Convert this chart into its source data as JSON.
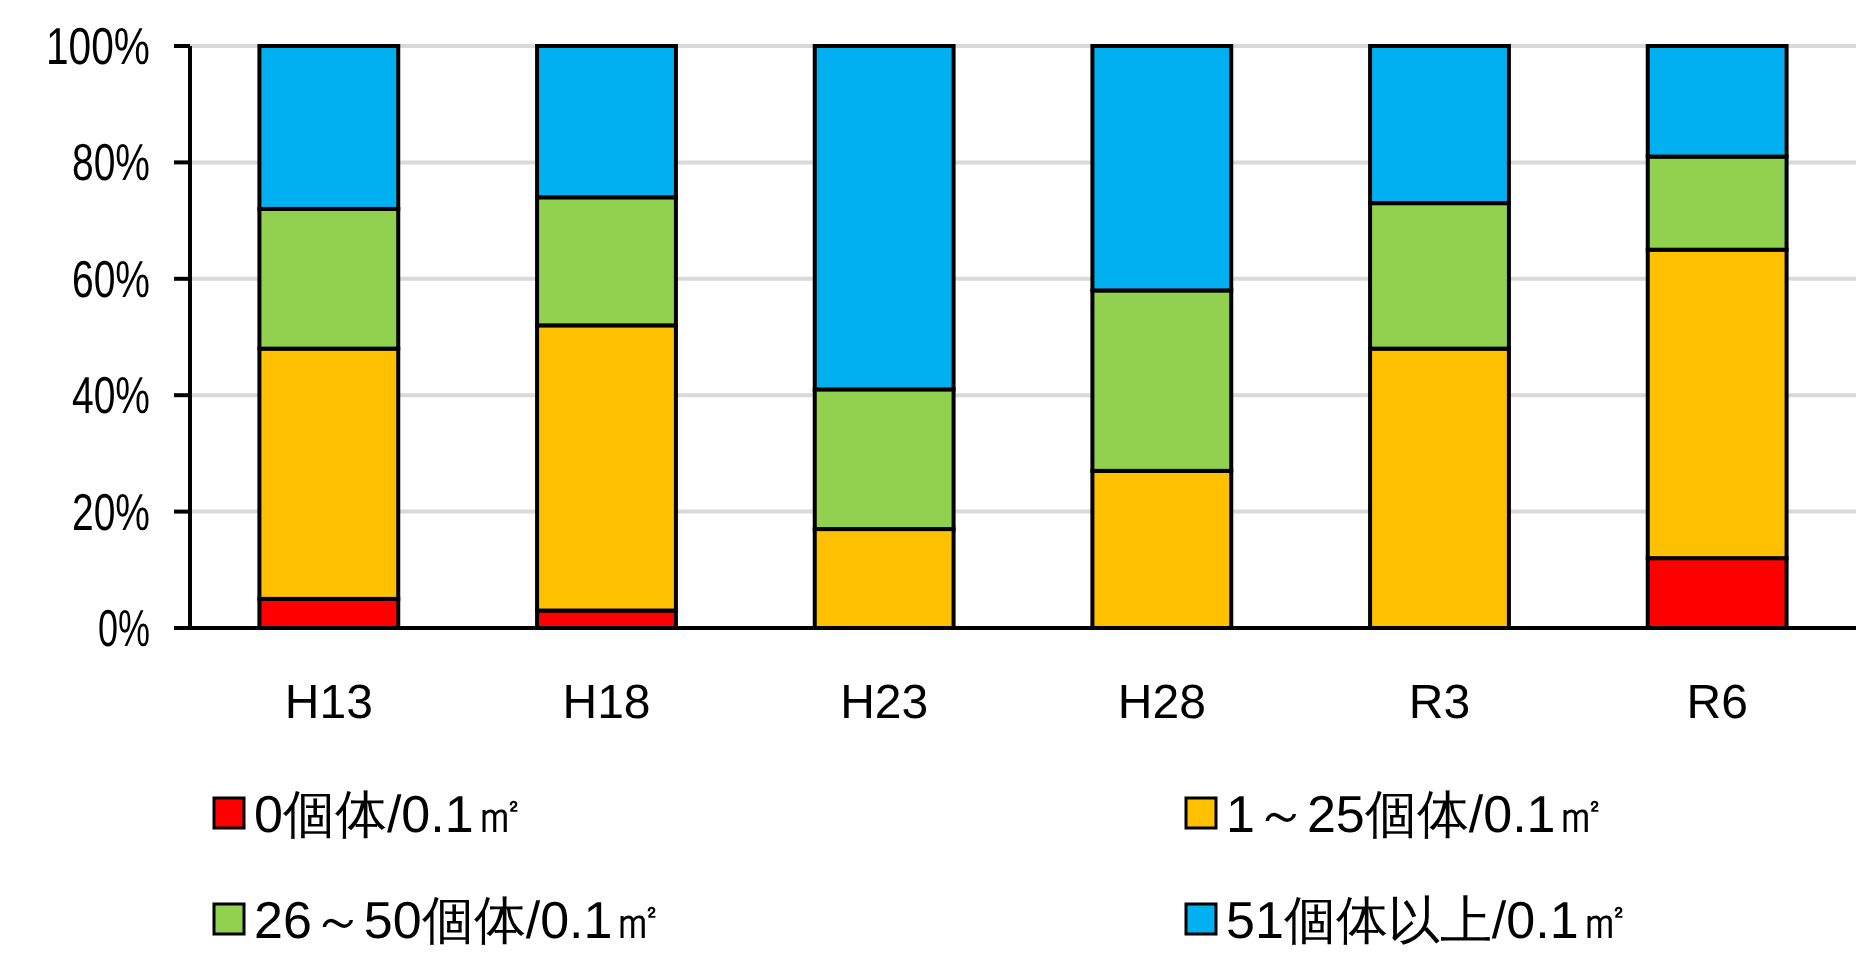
{
  "chart_data": {
    "type": "bar",
    "stacked": true,
    "categories": [
      "H13",
      "H18",
      "H23",
      "H28",
      "R3",
      "R6"
    ],
    "series": [
      {
        "name": "0個体/0.1㎡",
        "color": "#ff0000",
        "values": [
          5,
          3,
          0,
          0,
          0,
          12
        ]
      },
      {
        "name": "1～25個体/0.1㎡",
        "color": "#ffc000",
        "values": [
          43,
          49,
          17,
          27,
          48,
          53
        ]
      },
      {
        "name": "26～50個体/0.1㎡",
        "color": "#92d050",
        "values": [
          24,
          22,
          24,
          31,
          25,
          16
        ]
      },
      {
        "name": "51個体以上/0.1㎡",
        "color": "#00b0f0",
        "values": [
          28,
          26,
          59,
          42,
          27,
          19
        ]
      }
    ],
    "ylim": [
      0,
      100
    ],
    "yticks": [
      {
        "value": 0,
        "label": "0%"
      },
      {
        "value": 20,
        "label": "20%"
      },
      {
        "value": 40,
        "label": "40%"
      },
      {
        "value": 60,
        "label": "60%"
      },
      {
        "value": 80,
        "label": "80%"
      },
      {
        "value": 100,
        "label": "100%"
      }
    ],
    "grid": "y",
    "legend": "bottom"
  }
}
